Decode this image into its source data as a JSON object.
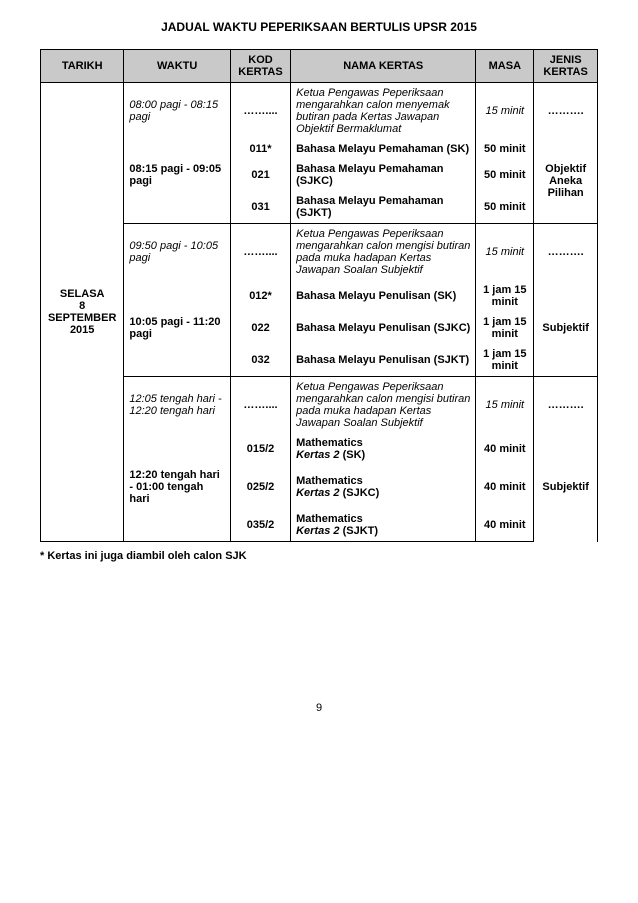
{
  "title": "JADUAL WAKTU PEPERIKSAAN BERTULIS UPSR 2015",
  "headers": {
    "tarikh": "TARIKH",
    "waktu": "WAKTU",
    "kod": "KOD KERTAS",
    "nama": "NAMA KERTAS",
    "masa": "MASA",
    "jenis": "JENIS KERTAS"
  },
  "tarikh": "SELASA\n8\nSEPTEMBER\n2015",
  "block1": {
    "r1": {
      "waktu": "08:00 pagi - 08:15 pagi",
      "kod": "……....",
      "nama": "Ketua Pengawas Peperiksaan mengarahkan calon menyemak butiran pada Kertas Jawapan Objektif Bermaklumat",
      "masa": "15 minit",
      "jenis": "………."
    },
    "r2": {
      "waktu": "08:15 pagi - 09:05 pagi",
      "kod": "011*",
      "nama": "Bahasa Melayu Pemahaman (SK)",
      "masa": "50 minit"
    },
    "r3": {
      "kod": "021",
      "nama": "Bahasa Melayu Pemahaman (SJKC)",
      "masa": "50 minit"
    },
    "r4": {
      "kod": "031",
      "nama": "Bahasa Melayu Pemahaman (SJKT)",
      "masa": "50 minit"
    },
    "jenis": "Objektif Aneka Pilihan"
  },
  "block2": {
    "r1": {
      "waktu": "09:50 pagi - 10:05 pagi",
      "kod": "……....",
      "nama": "Ketua Pengawas Peperiksaan mengarahkan calon mengisi butiran pada muka hadapan Kertas Jawapan Soalan Subjektif",
      "masa": "15 minit",
      "jenis": "………."
    },
    "r2": {
      "waktu": "10:05 pagi - 11:20 pagi",
      "kod": "012*",
      "nama": "Bahasa Melayu Penulisan (SK)",
      "masa": "1 jam 15 minit"
    },
    "r3": {
      "kod": "022",
      "nama": "Bahasa Melayu Penulisan (SJKC)",
      "masa": "1 jam 15 minit"
    },
    "r4": {
      "kod": "032",
      "nama": "Bahasa Melayu Penulisan (SJKT)",
      "masa": "1 jam 15 minit"
    },
    "jenis": "Subjektif"
  },
  "block3": {
    "r1": {
      "waktu": "12:05 tengah hari - 12:20 tengah hari",
      "kod": "……....",
      "nama": "Ketua Pengawas Peperiksaan mengarahkan calon mengisi butiran pada muka hadapan Kertas Jawapan Soalan Subjektif",
      "masa": "15 minit",
      "jenis": "………."
    },
    "r2": {
      "waktu": "12:20 tengah hari - 01:00 tengah hari",
      "kod": "015/2",
      "nama1": "Mathematics",
      "nama2": "Kertas 2",
      "nama3": " (SK)",
      "masa": "40 minit"
    },
    "r3": {
      "kod": "025/2",
      "nama1": "Mathematics",
      "nama2": "Kertas 2",
      "nama3": " (SJKC)",
      "masa": "40 minit"
    },
    "r4": {
      "kod": "035/2",
      "nama1": "Mathematics",
      "nama2": "Kertas 2",
      "nama3": " (SJKT)",
      "masa": "40 minit"
    },
    "jenis": "Subjektif"
  },
  "footnote": "* Kertas ini juga diambil oleh calon SJK",
  "pagenum": "9"
}
